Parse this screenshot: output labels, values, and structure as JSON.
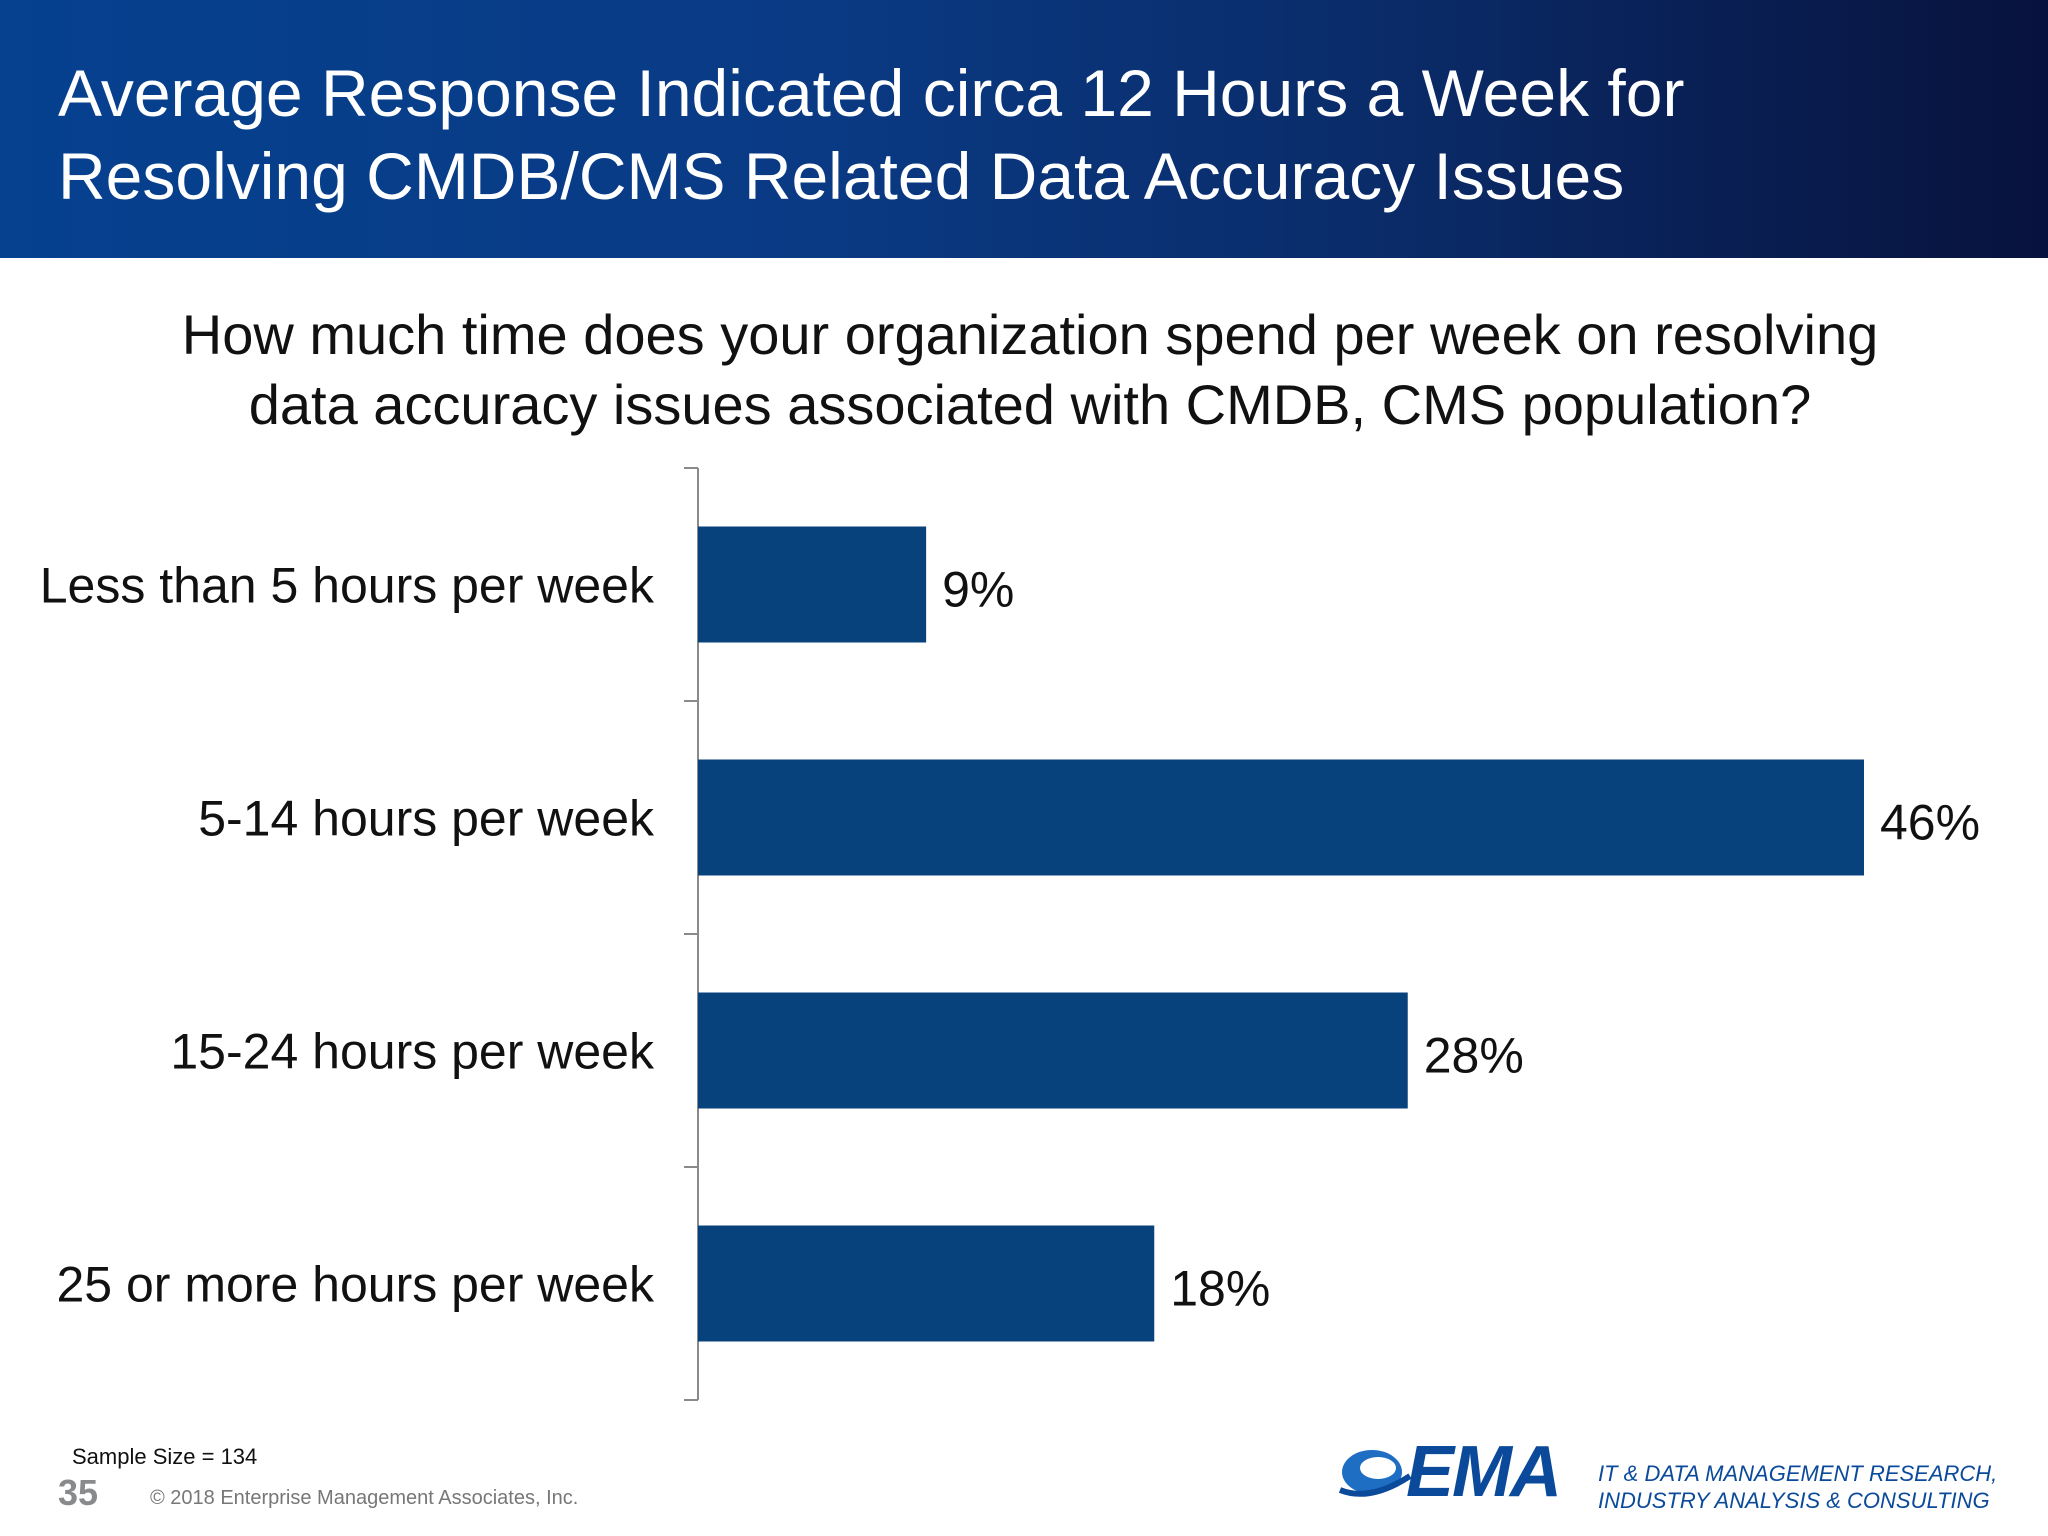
{
  "header": {
    "title_line1": "Average Response Indicated circa 12 Hours a Week for",
    "title_line2": "Resolving CMDB/CMS Related Data Accuracy Issues"
  },
  "question": {
    "line1": "How much time does your organization spend per week on resolving",
    "line2": "data accuracy issues associated with CMDB, CMS population?"
  },
  "colors": {
    "header_bg": "#05418f",
    "bar": "#08427c",
    "axis": "#8a8a8a"
  },
  "chart_data": {
    "type": "bar",
    "orientation": "horizontal",
    "title": "How much time does your organization spend per week on resolving data accuracy issues associated with CMDB, CMS population?",
    "categories": [
      "Less than 5 hours per week",
      "5-14 hours per week",
      "15-24 hours per week",
      "25 or more hours per week"
    ],
    "values": [
      9,
      46,
      28,
      18
    ],
    "value_labels": [
      "9%",
      "46%",
      "28%",
      "18%"
    ],
    "unit": "%",
    "xlim": [
      0,
      50
    ],
    "grid": false,
    "legend": "none"
  },
  "footer": {
    "sample_size": "Sample Size = 134",
    "page_number": "35",
    "copyright": "© 2018 Enterprise Management Associates, Inc.",
    "logo_text": "EMA",
    "tagline_line1": "IT & DATA MANAGEMENT RESEARCH,",
    "tagline_line2": "INDUSTRY ANALYSIS & CONSULTING"
  }
}
